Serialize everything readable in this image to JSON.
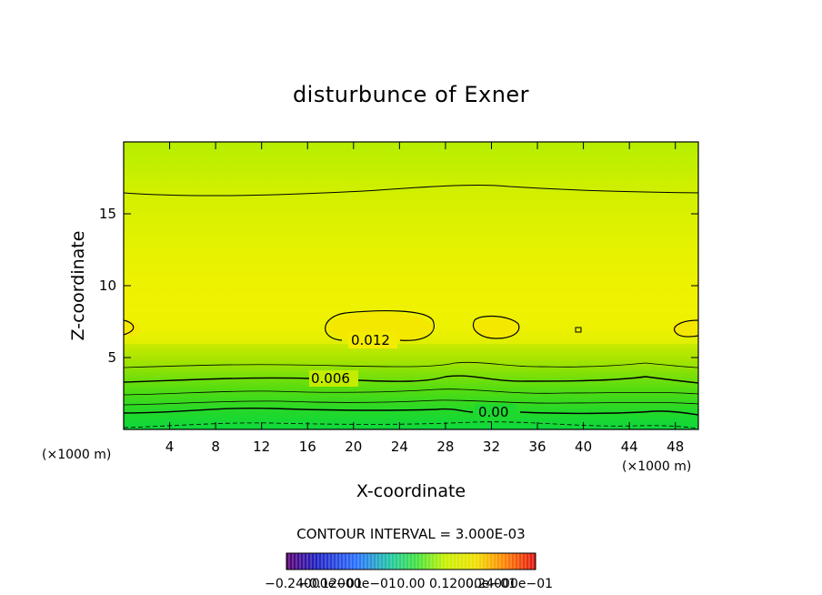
{
  "chart_data": {
    "type": "heatmap",
    "title": "disturbunce of Exner",
    "xlabel": "X-coordinate",
    "ylabel": "Z-coordinate",
    "x_unit": "(×1000 m)",
    "y_unit": "(×1000 m)",
    "xlim": [
      0,
      50
    ],
    "ylim": [
      0,
      20
    ],
    "x_ticks": [
      "4",
      "8",
      "12",
      "16",
      "20",
      "24",
      "28",
      "32",
      "36",
      "40",
      "44",
      "48"
    ],
    "y_ticks": [
      "5",
      "10",
      "15"
    ],
    "contour_labels": [
      "0.012",
      "0.006",
      "0.00"
    ],
    "contour_interval_text": "CONTOUR INTERVAL = 3.000E-03",
    "colorbar_labels": [
      "−0.24000e−01",
      "−0.12000e−01",
      "0.00",
      "0.12000e−01",
      "0.24000e−01"
    ],
    "colors": {
      "high": "#f2f200",
      "mid": "#bff000",
      "low": "#11dd33",
      "line": "#000000"
    }
  }
}
